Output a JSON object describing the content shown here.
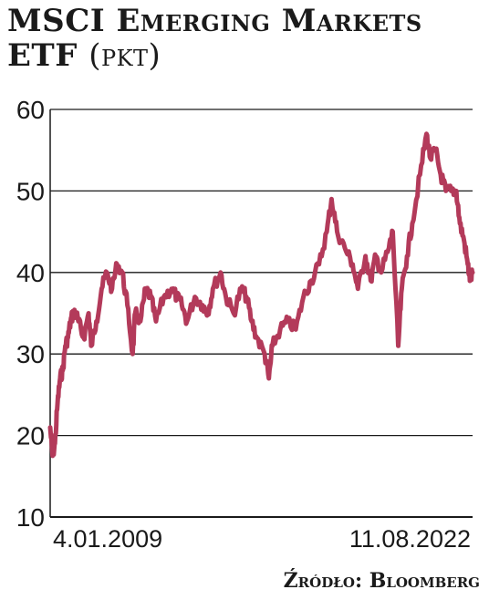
{
  "title_main": "MSCI Emerging Markets ETF",
  "title_unit": "(pkt)",
  "source": "Źródło: Bloomberg",
  "colors": {
    "line": "#b33a5a",
    "grid": "#1a1a1a",
    "background": "#ffffff"
  },
  "chart_data": {
    "type": "line",
    "title": "MSCI Emerging Markets ETF",
    "unit": "pkt",
    "ylim": [
      10,
      60
    ],
    "yticks": [
      10,
      20,
      30,
      40,
      50,
      60
    ],
    "grid": true,
    "x_labels": [
      "4.01.2009",
      "11.08.2022"
    ],
    "x_range": [
      "2009-01-04",
      "2022-08-11"
    ],
    "series": [
      {
        "x": [
          "2009-01-04",
          "2009-02-01",
          "2009-03-01",
          "2009-04-01",
          "2009-05-01",
          "2009-06-01",
          "2009-07-01",
          "2009-08-01",
          "2009-09-01",
          "2009-10-01",
          "2009-11-01",
          "2009-12-01",
          "2010-02-01",
          "2010-04-01",
          "2010-05-01",
          "2010-07-01",
          "2010-09-01",
          "2010-11-01",
          "2011-01-01",
          "2011-03-01",
          "2011-05-01",
          "2011-07-01",
          "2011-09-01",
          "2011-10-01",
          "2011-12-01",
          "2012-02-01",
          "2012-04-01",
          "2012-06-01",
          "2012-09-01",
          "2012-12-01",
          "2013-02-01",
          "2013-04-01",
          "2013-06-01",
          "2013-09-01",
          "2013-12-01",
          "2014-02-01",
          "2014-04-01",
          "2014-07-01",
          "2014-09-01",
          "2014-12-01",
          "2015-03-01",
          "2015-05-01",
          "2015-07-01",
          "2015-09-01",
          "2015-12-01",
          "2016-01-20",
          "2016-03-01",
          "2016-06-01",
          "2016-09-01",
          "2016-12-01",
          "2017-03-01",
          "2017-06-01",
          "2017-09-01",
          "2017-12-01",
          "2018-01-26",
          "2018-04-01",
          "2018-07-01",
          "2018-10-01",
          "2018-12-01",
          "2019-03-01",
          "2019-05-01",
          "2019-07-01",
          "2019-09-01",
          "2019-12-01",
          "2020-01-15",
          "2020-03-20",
          "2020-05-01",
          "2020-07-01",
          "2020-09-01",
          "2020-12-01",
          "2021-02-15",
          "2021-04-01",
          "2021-06-01",
          "2021-08-01",
          "2021-10-01",
          "2021-12-01",
          "2022-02-01",
          "2022-03-15",
          "2022-05-01",
          "2022-06-15",
          "2022-07-15",
          "2022-08-11"
        ],
        "values": [
          21,
          17.5,
          19,
          24,
          27,
          28,
          31,
          32,
          34,
          35,
          35,
          34,
          32,
          35,
          31,
          34,
          38,
          40,
          38,
          41,
          40,
          36,
          30,
          35,
          34,
          38,
          37,
          34,
          37,
          38,
          37,
          36,
          34,
          37,
          36,
          35,
          38,
          40,
          37,
          35,
          38,
          37,
          34,
          32,
          30,
          27,
          31,
          33,
          34,
          33,
          37,
          39,
          41,
          45,
          49,
          45,
          43,
          41,
          38,
          42,
          39,
          42,
          40,
          43,
          45,
          31,
          38,
          42,
          46,
          52,
          57,
          54,
          55,
          52,
          50,
          50,
          50,
          46,
          44,
          41,
          39,
          40
        ]
      }
    ]
  }
}
